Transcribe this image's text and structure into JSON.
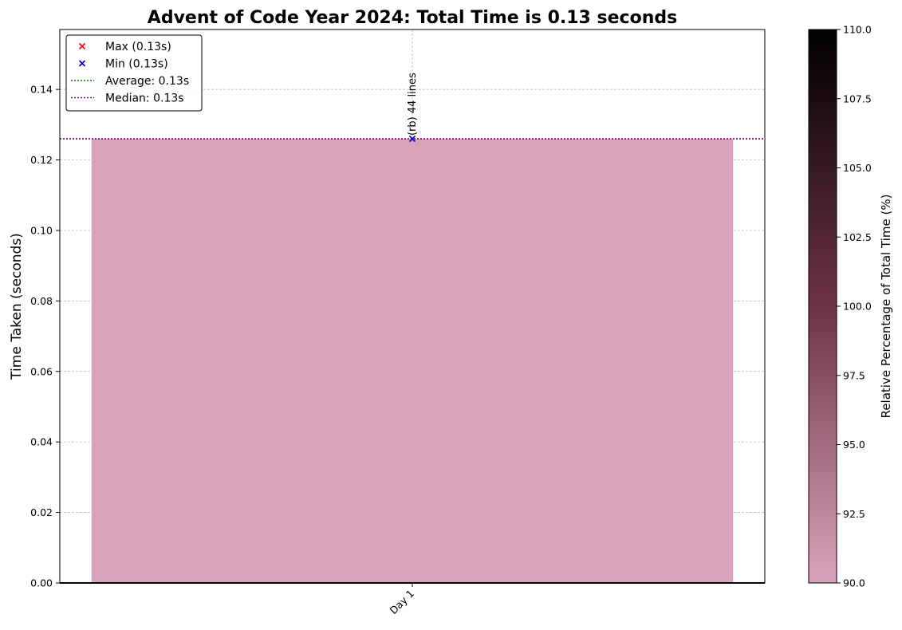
{
  "chart_data": {
    "type": "bar",
    "title": "Advent of Code Year 2024: Total Time is 0.13 seconds",
    "xlabel": "",
    "ylabel": "Time Taken (seconds)",
    "categories": [
      "Day 1"
    ],
    "values": [
      0.126
    ],
    "bar_annotations": [
      "(rb) 44 lines"
    ],
    "ylim": [
      0,
      0.157
    ],
    "yticks": [
      0.0,
      0.02,
      0.04,
      0.06,
      0.08,
      0.1,
      0.12,
      0.14
    ],
    "ytick_labels": [
      "0.00",
      "0.02",
      "0.04",
      "0.06",
      "0.08",
      "0.10",
      "0.12",
      "0.14"
    ],
    "grid": true,
    "legend_position": "top-left",
    "legend": [
      {
        "label": "Max (0.13s)",
        "kind": "x-marker",
        "color": "#ff0000"
      },
      {
        "label": "Min (0.13s)",
        "kind": "x-marker",
        "color": "#0000cc"
      },
      {
        "label": "Average: 0.13s",
        "kind": "dotted-line",
        "color": "#008000"
      },
      {
        "label": "Median: 0.13s",
        "kind": "dotted-line",
        "color": "#800080"
      }
    ],
    "max_point": {
      "category": "Day 1",
      "value": 0.126
    },
    "min_point": {
      "category": "Day 1",
      "value": 0.126
    },
    "average": 0.126,
    "median": 0.126,
    "bar_color": "#d9a4bb",
    "colorbar": {
      "label": "Relative Percentage of Total Time (%)",
      "range": [
        90.0,
        110.0
      ],
      "ticks": [
        90.0,
        92.5,
        95.0,
        97.5,
        100.0,
        102.5,
        105.0,
        107.5,
        110.0
      ],
      "tick_labels": [
        "90.0",
        "92.5",
        "95.0",
        "97.5",
        "100.0",
        "102.5",
        "105.0",
        "107.5",
        "110.0"
      ],
      "color_low": "#d9a4bb",
      "color_mid": "#6e3247",
      "color_high": "#000000"
    }
  }
}
